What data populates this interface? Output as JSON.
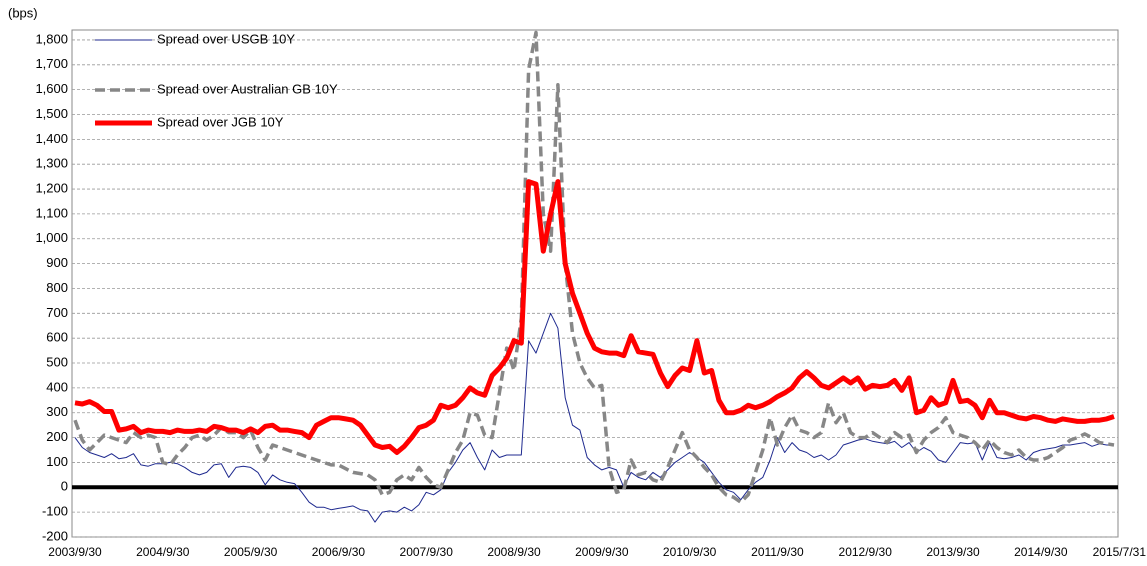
{
  "chart_data": {
    "type": "line",
    "y_label": "(bps)",
    "categories": [
      "2003/9/30",
      null,
      null,
      null,
      null,
      null,
      null,
      null,
      null,
      null,
      null,
      null,
      "2004/9/30",
      null,
      null,
      null,
      null,
      null,
      null,
      null,
      null,
      null,
      null,
      null,
      "2005/9/30",
      null,
      null,
      null,
      null,
      null,
      null,
      null,
      null,
      null,
      null,
      null,
      "2006/9/30",
      null,
      null,
      null,
      null,
      null,
      null,
      null,
      null,
      null,
      null,
      null,
      "2007/9/30",
      null,
      null,
      null,
      null,
      null,
      null,
      null,
      null,
      null,
      null,
      null,
      "2008/9/30",
      null,
      null,
      null,
      null,
      null,
      null,
      null,
      null,
      null,
      null,
      null,
      "2009/9/30",
      null,
      null,
      null,
      null,
      null,
      null,
      null,
      null,
      null,
      null,
      null,
      "2010/9/30",
      null,
      null,
      null,
      null,
      null,
      null,
      null,
      null,
      null,
      null,
      null,
      "2011/9/30",
      null,
      null,
      null,
      null,
      null,
      null,
      null,
      null,
      null,
      null,
      null,
      "2012/9/30",
      null,
      null,
      null,
      null,
      null,
      null,
      null,
      null,
      null,
      null,
      null,
      "2013/9/30",
      null,
      null,
      null,
      null,
      null,
      null,
      null,
      null,
      null,
      null,
      null,
      "2014/9/30",
      null,
      null,
      null,
      null,
      null,
      null,
      null,
      null,
      null,
      "2015/7/31"
    ],
    "series": [
      {
        "name": "Spread over USGB 10Y",
        "color": "#1f2a8f",
        "values": [
          200,
          160,
          140,
          130,
          120,
          135,
          115,
          120,
          135,
          90,
          85,
          95,
          95,
          100,
          95,
          80,
          60,
          50,
          60,
          90,
          95,
          40,
          80,
          85,
          80,
          60,
          10,
          50,
          30,
          20,
          15,
          -20,
          -60,
          -80,
          -80,
          -90,
          -85,
          -80,
          -75,
          -90,
          -95,
          -140,
          -100,
          -95,
          -100,
          -80,
          -95,
          -70,
          -20,
          -30,
          -10,
          60,
          100,
          150,
          180,
          120,
          70,
          150,
          120,
          130,
          130,
          130,
          590,
          540,
          620,
          700,
          640,
          360,
          250,
          230,
          120,
          90,
          70,
          80,
          70,
          0,
          60,
          40,
          30,
          60,
          40,
          70,
          100,
          120,
          140,
          120,
          100,
          60,
          20,
          -10,
          -20,
          -50,
          -10,
          20,
          40,
          110,
          200,
          140,
          180,
          150,
          140,
          120,
          130,
          110,
          130,
          170,
          180,
          190,
          195,
          185,
          180,
          175,
          185,
          160,
          180,
          140,
          160,
          145,
          110,
          100,
          140,
          180,
          175,
          180,
          110,
          180,
          120,
          115,
          120,
          130,
          110,
          140,
          150,
          155,
          160,
          170,
          170,
          175,
          180,
          165,
          175,
          170,
          170
        ]
      },
      {
        "name": "Spread over Australian GB 10Y",
        "color": "#878787",
        "values": [
          270,
          190,
          150,
          180,
          210,
          200,
          190,
          180,
          220,
          200,
          210,
          200,
          100,
          90,
          130,
          160,
          200,
          210,
          190,
          210,
          240,
          220,
          220,
          200,
          230,
          160,
          110,
          170,
          160,
          150,
          140,
          130,
          120,
          110,
          100,
          90,
          90,
          75,
          60,
          55,
          50,
          30,
          -30,
          -20,
          30,
          50,
          30,
          80,
          40,
          10,
          0,
          70,
          140,
          190,
          300,
          290,
          210,
          200,
          380,
          560,
          470,
          680,
          1680,
          1830,
          1100,
          950,
          1620,
          900,
          620,
          500,
          440,
          400,
          410,
          80,
          -20,
          -10,
          110,
          50,
          60,
          30,
          20,
          80,
          150,
          220,
          150,
          120,
          80,
          50,
          0,
          -30,
          -40,
          -60,
          -30,
          60,
          150,
          280,
          170,
          240,
          290,
          230,
          220,
          200,
          220,
          340,
          260,
          300,
          220,
          200,
          200,
          220,
          200,
          180,
          220,
          200,
          210,
          140,
          190,
          220,
          240,
          280,
          220,
          210,
          200,
          180,
          150,
          190,
          160,
          140,
          130,
          150,
          120,
          110,
          110,
          120,
          140,
          160,
          190,
          200,
          215,
          200,
          180,
          175,
          170
        ]
      },
      {
        "name": "Spread over JGB 10Y",
        "color": "#ff0000",
        "values": [
          340,
          335,
          345,
          330,
          305,
          305,
          230,
          235,
          245,
          220,
          230,
          225,
          225,
          220,
          230,
          225,
          225,
          230,
          225,
          245,
          240,
          230,
          230,
          220,
          235,
          220,
          245,
          250,
          230,
          230,
          225,
          220,
          200,
          250,
          265,
          280,
          280,
          275,
          270,
          250,
          210,
          170,
          160,
          165,
          140,
          165,
          200,
          240,
          250,
          270,
          330,
          320,
          330,
          360,
          400,
          380,
          370,
          450,
          480,
          520,
          590,
          580,
          1230,
          1220,
          950,
          1100,
          1230,
          900,
          780,
          700,
          620,
          560,
          545,
          540,
          540,
          530,
          610,
          545,
          540,
          535,
          460,
          405,
          450,
          480,
          470,
          590,
          460,
          470,
          350,
          300,
          300,
          310,
          330,
          320,
          330,
          345,
          365,
          380,
          400,
          440,
          465,
          440,
          410,
          400,
          420,
          440,
          420,
          440,
          395,
          410,
          405,
          410,
          430,
          390,
          440,
          300,
          310,
          360,
          330,
          340,
          430,
          345,
          350,
          330,
          280,
          350,
          300,
          300,
          290,
          280,
          275,
          285,
          280,
          270,
          265,
          275,
          270,
          265,
          265,
          270,
          270,
          275,
          285
        ]
      }
    ],
    "ylim": [
      -200,
      1840
    ],
    "yticks": [
      -200,
      -100,
      0,
      100,
      200,
      300,
      400,
      500,
      600,
      700,
      800,
      900,
      {
        "value": 1000,
        "label": "1,000"
      },
      {
        "value": 1100,
        "label": "1,100"
      },
      {
        "value": 1200,
        "label": "1,200"
      },
      {
        "value": 1300,
        "label": "1,300"
      },
      {
        "value": 1400,
        "label": "1,400"
      },
      {
        "value": 1500,
        "label": "1,500"
      },
      {
        "value": 1600,
        "label": "1,600"
      },
      {
        "value": 1700,
        "label": "1,700"
      },
      {
        "value": 1800,
        "label": "1,800"
      }
    ],
    "grid": true,
    "legend": "upper left"
  }
}
